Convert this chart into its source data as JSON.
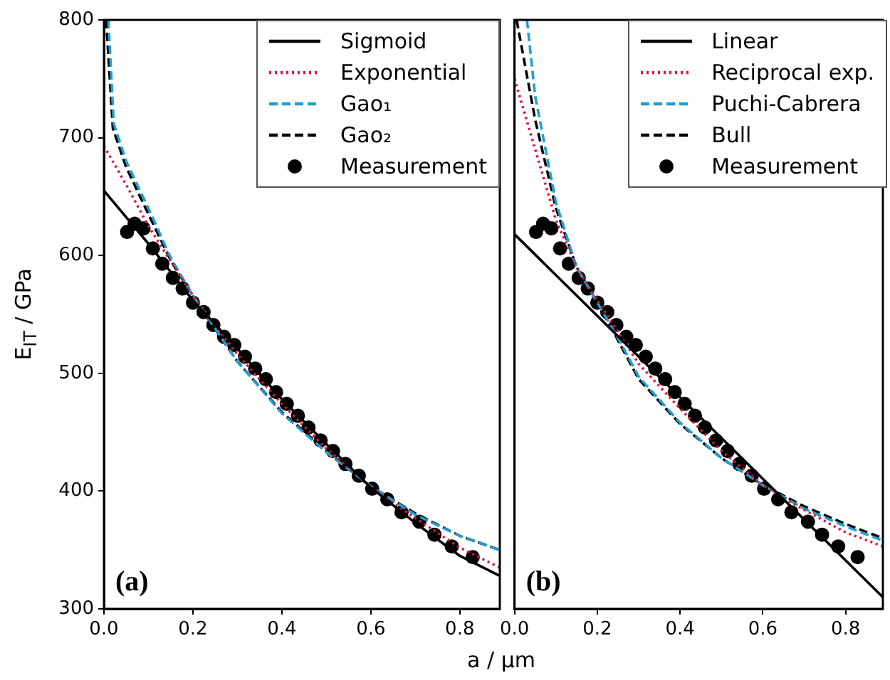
{
  "chart_data": [
    {
      "type": "line",
      "xlabel": "a / µm",
      "ylabel": "E$_{IT}$ / GPa",
      "xlim": [
        0,
        0.89
      ],
      "ylim": [
        300,
        800
      ],
      "xticks": [
        {
          "value": 0,
          "label": "0.0"
        },
        {
          "value": 0.2,
          "label": "0.2"
        },
        {
          "value": 0.4,
          "label": "0.4"
        },
        {
          "value": 0.6,
          "label": "0.6"
        },
        {
          "value": 0.8,
          "label": "0.8"
        }
      ],
      "yticks": [
        300,
        400,
        500,
        600,
        700,
        800
      ],
      "legend": "top right",
      "annotations": [
        "(a)"
      ],
      "series": [
        {
          "name": "Sigmoid",
          "type": "line",
          "color": "#000000",
          "line_style": "solid",
          "x": [
            0,
            0.1,
            0.2,
            0.3,
            0.4,
            0.5,
            0.6,
            0.7,
            0.8,
            0.89
          ],
          "values": [
            655,
            610,
            562,
            521,
            478,
            440,
            403,
            373,
            345,
            328
          ]
        },
        {
          "name": "Exponential",
          "type": "line",
          "color": "#dc143c",
          "line_style": "dotted",
          "x": [
            0,
            0.05,
            0.1,
            0.15,
            0.2,
            0.3,
            0.4,
            0.5,
            0.6,
            0.7,
            0.8,
            0.89
          ],
          "values": [
            693,
            660,
            625,
            595,
            566,
            516,
            474,
            436,
            403,
            377,
            352,
            335
          ]
        },
        {
          "name": "Gao₁",
          "type": "line",
          "color": "#1f9fd0",
          "line_style": "dashed",
          "x": [
            0.01,
            0.022,
            0.05,
            0.1,
            0.15,
            0.2,
            0.3,
            0.4,
            0.5,
            0.6,
            0.7,
            0.8,
            0.89
          ],
          "values": [
            800,
            712,
            680,
            640,
            598,
            566,
            510,
            466,
            433,
            404,
            380,
            362,
            350
          ]
        },
        {
          "name": "Gao₂",
          "type": "line",
          "color": "#000000",
          "line_style": "dashed",
          "x": [
            0.005,
            0.02,
            0.05,
            0.1,
            0.15,
            0.2,
            0.3,
            0.4,
            0.5,
            0.6,
            0.7,
            0.8,
            0.89
          ],
          "values": [
            800,
            708,
            675,
            635,
            596,
            565,
            510,
            467,
            434,
            404,
            381,
            362,
            350
          ]
        },
        {
          "name": "Measurement",
          "type": "scatter",
          "color": "#000000",
          "marker": "circle",
          "x": [
            0.052,
            0.069,
            0.089,
            0.11,
            0.131,
            0.155,
            0.177,
            0.2,
            0.224,
            0.246,
            0.27,
            0.293,
            0.317,
            0.34,
            0.364,
            0.387,
            0.411,
            0.436,
            0.46,
            0.487,
            0.515,
            0.543,
            0.573,
            0.603,
            0.637,
            0.669,
            0.709,
            0.743,
            0.782,
            0.829
          ],
          "values": [
            620,
            627,
            623,
            606,
            593,
            581,
            572,
            560,
            552,
            541,
            531,
            524,
            514,
            504,
            495,
            484,
            474,
            464,
            454,
            443,
            434,
            423,
            413,
            402,
            393,
            382,
            374,
            363,
            353,
            344
          ]
        }
      ]
    },
    {
      "type": "line",
      "xlim": [
        0,
        0.89
      ],
      "ylim": [
        300,
        800
      ],
      "tick_labels": "x",
      "xticks": [
        {
          "value": 0,
          "label": "0.0"
        },
        {
          "value": 0.2,
          "label": "0.2"
        },
        {
          "value": 0.4,
          "label": "0.4"
        },
        {
          "value": 0.6,
          "label": "0.6"
        },
        {
          "value": 0.8,
          "label": "0.8"
        }
      ],
      "yticks": [
        300,
        400,
        500,
        600,
        700,
        800
      ],
      "legend": "top right",
      "annotations": [
        "(b)"
      ],
      "series": [
        {
          "name": "Linear",
          "type": "line",
          "color": "#000000",
          "line_style": "solid",
          "x": [
            0,
            0.89
          ],
          "values": [
            618,
            310
          ]
        },
        {
          "name": "Reciprocal exp.",
          "type": "line",
          "color": "#dc143c",
          "line_style": "dotted",
          "x": [
            0,
            0.05,
            0.1,
            0.15,
            0.2,
            0.25,
            0.3,
            0.4,
            0.5,
            0.6,
            0.7,
            0.8,
            0.89
          ],
          "values": [
            750,
            690,
            630,
            590,
            562,
            535,
            508,
            470,
            434,
            405,
            384,
            365,
            353
          ]
        },
        {
          "name": "Puchi-Cabrera",
          "type": "line",
          "color": "#1f9fd0",
          "line_style": "dashed",
          "x": [
            0.03,
            0.05,
            0.1,
            0.15,
            0.2,
            0.25,
            0.3,
            0.4,
            0.5,
            0.6,
            0.7,
            0.8,
            0.89
          ],
          "values": [
            800,
            735,
            645,
            590,
            560,
            530,
            497,
            458,
            428,
            405,
            385,
            370,
            358
          ]
        },
        {
          "name": "Bull",
          "type": "line",
          "color": "#000000",
          "line_style": "dashed",
          "x": [
            0.005,
            0.05,
            0.1,
            0.15,
            0.2,
            0.25,
            0.3,
            0.4,
            0.5,
            0.6,
            0.7,
            0.8,
            0.89
          ],
          "values": [
            800,
            715,
            640,
            590,
            560,
            528,
            495,
            457,
            428,
            405,
            387,
            372,
            360
          ]
        },
        {
          "name": "Measurement",
          "type": "scatter",
          "color": "#000000",
          "marker": "circle",
          "x": [
            0.052,
            0.069,
            0.089,
            0.11,
            0.131,
            0.155,
            0.177,
            0.2,
            0.224,
            0.246,
            0.27,
            0.293,
            0.317,
            0.34,
            0.364,
            0.387,
            0.411,
            0.436,
            0.46,
            0.487,
            0.515,
            0.543,
            0.573,
            0.603,
            0.637,
            0.669,
            0.709,
            0.743,
            0.782,
            0.829
          ],
          "values": [
            620,
            627,
            623,
            606,
            593,
            581,
            572,
            560,
            552,
            541,
            531,
            524,
            514,
            504,
            495,
            484,
            474,
            464,
            454,
            443,
            434,
            423,
            413,
            402,
            393,
            382,
            374,
            363,
            353,
            344
          ]
        }
      ]
    }
  ]
}
